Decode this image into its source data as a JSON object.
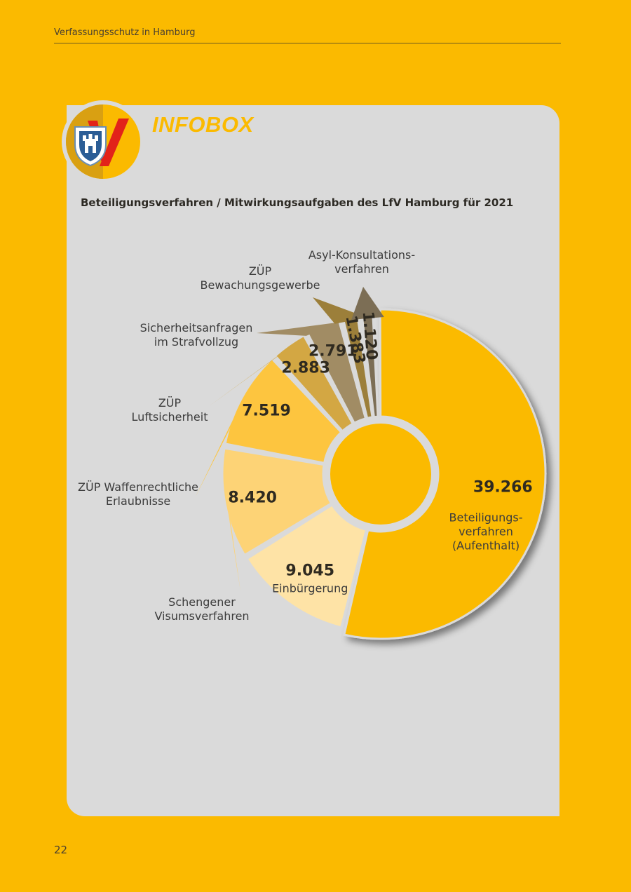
{
  "header": {
    "running_title": "Verfassungsschutz in Hamburg"
  },
  "infobox": {
    "label": "INFOBOX",
    "title": "Beteiligungsverfahren / Mitwirkungsaufgaben des LfV Hamburg für 2021"
  },
  "footer": {
    "page_number": "22"
  },
  "chart_data": {
    "type": "pie",
    "title": "Beteiligungsverfahren / Mitwirkungsaufgaben des LfV Hamburg für 2021",
    "slices": [
      {
        "value_label": "39.266",
        "label_lines": [
          "Beteiligungs-",
          "verfahren",
          "(Aufenthalt)"
        ],
        "value": 39266,
        "color": "#FBBA00"
      },
      {
        "value_label": "9.045",
        "label_lines": [
          "Einbürgerung"
        ],
        "value": 9045,
        "color": "#FEE3A6"
      },
      {
        "value_label": "8.420",
        "label_lines": [
          "Schengener",
          "Visumsverfahren"
        ],
        "value": 8420,
        "color": "#FDD376"
      },
      {
        "value_label": "7.519",
        "label_lines": [
          "ZÜP Waffenrechtliche",
          "Erlaubnisse"
        ],
        "value": 7519,
        "color": "#FDC53F"
      },
      {
        "value_label": "2.883",
        "label_lines": [
          "ZÜP",
          "Luftsicherheit"
        ],
        "value": 2883,
        "color": "#D3A743"
      },
      {
        "value_label": "2.791",
        "label_lines": [
          "Sicherheitsanfragen",
          "im Strafvollzug"
        ],
        "value": 2791,
        "color": "#A18C64"
      },
      {
        "value_label": "1.383",
        "label_lines": [
          "ZÜP",
          "Bewachungsgewerbe"
        ],
        "value": 1383,
        "color": "#9C7F3A"
      },
      {
        "value_label": "1.120",
        "label_lines": [
          "Asyl-Konsultations-",
          "verfahren"
        ],
        "value": 1120,
        "color": "#7C6E55"
      }
    ]
  }
}
